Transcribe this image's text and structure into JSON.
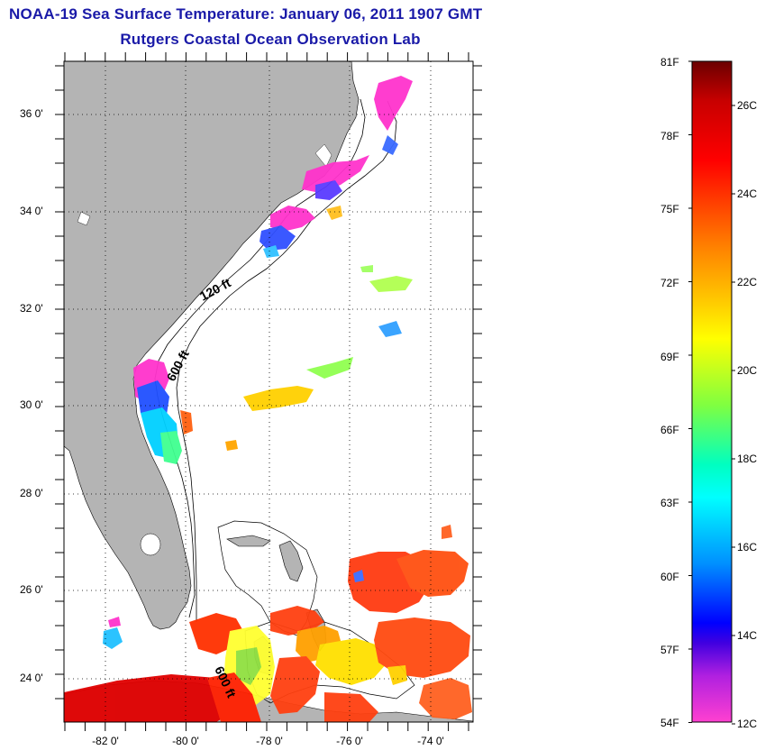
{
  "header": {
    "title_line1": "NOAA-19 Sea Surface Temperature:  January 06, 2011 1907 GMT",
    "title_line2": "Rutgers Coastal Ocean Observation Lab"
  },
  "map": {
    "lat_labels": [
      "36 0'",
      "34 0'",
      "32 0'",
      "30 0'",
      "28 0'",
      "26 0'",
      "24 0'"
    ],
    "lon_labels": [
      "-82 0'",
      "-80 0'",
      "-78 0'",
      "-76 0'",
      "-74 0'"
    ],
    "isobath_labels": [
      "120 ft",
      "600 ft",
      "600 ft"
    ],
    "land_color": "#b4b4b4",
    "ocean_color": "#ffffff"
  },
  "colorbar": {
    "fahrenheit_labels": [
      "81F",
      "78F",
      "75F",
      "72F",
      "69F",
      "66F",
      "63F",
      "60F",
      "57F",
      "54F"
    ],
    "celsius_labels": [
      "26C",
      "24C",
      "22C",
      "20C",
      "18C",
      "16C",
      "14C",
      "12C"
    ],
    "stops": [
      "#8b0000",
      "#ff0000",
      "#ff7f00",
      "#ffff00",
      "#7fff3f",
      "#00ffff",
      "#0070ff",
      "#0000ff",
      "#8a2be2",
      "#ff33cc"
    ]
  }
}
